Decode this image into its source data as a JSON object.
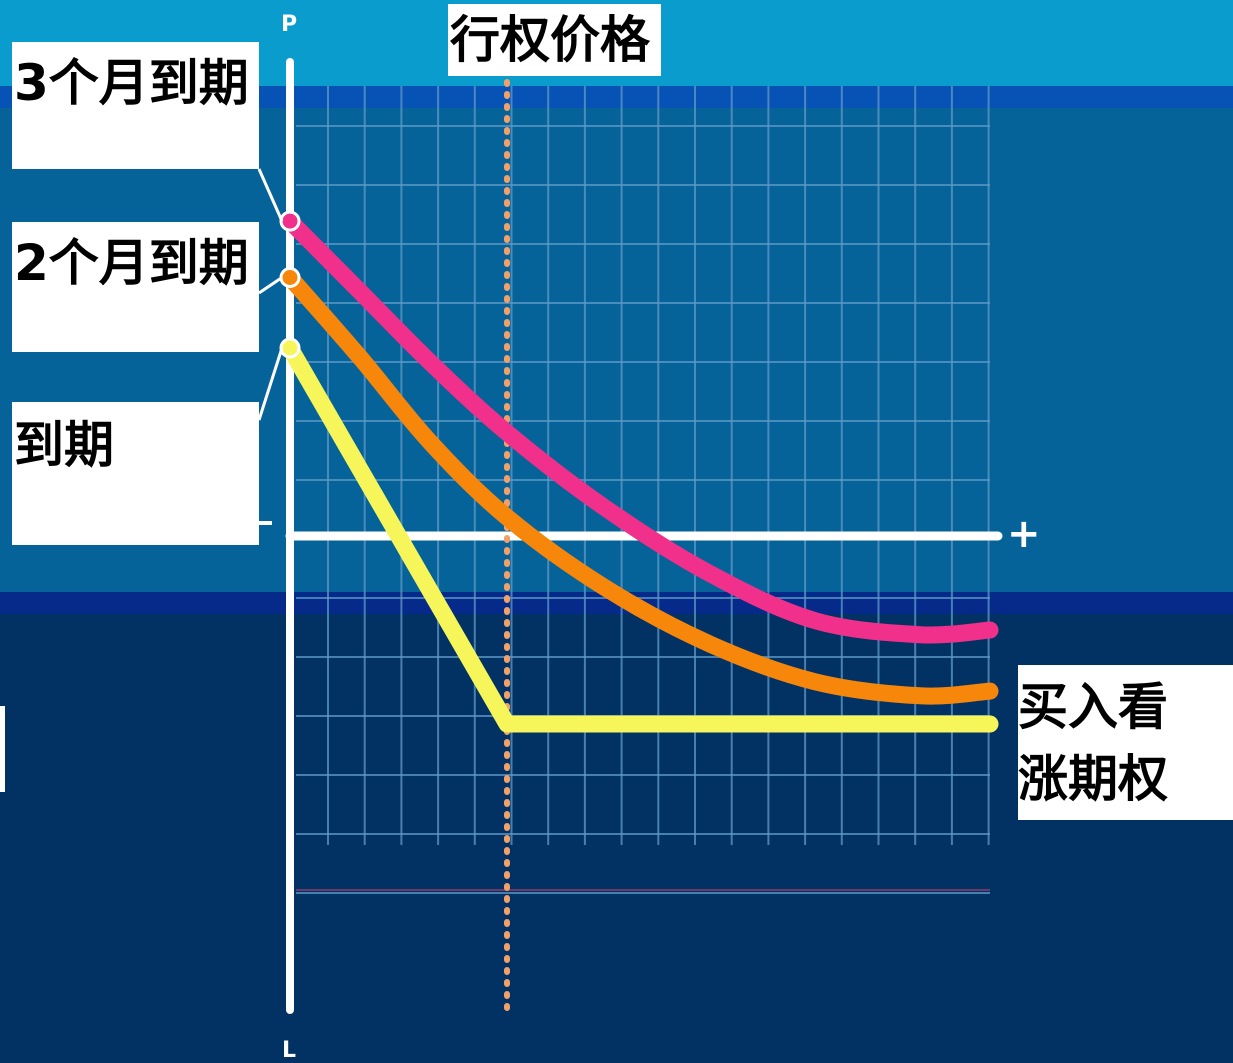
{
  "chart_data": {
    "type": "line",
    "title": "",
    "xlabel": "",
    "ylabel": "",
    "y_axis_top_label": "P",
    "y_axis_bottom_label": "L",
    "x_axis_right_label": "+",
    "x_axis_left_label": "-",
    "xlim": [
      0,
      100
    ],
    "ylim": [
      -100,
      100
    ],
    "grid": true,
    "legend": "left",
    "strike_label": "行权价格",
    "strike_x": 31,
    "option_label_line1": "买入看",
    "option_label_line2": "涨期权",
    "series": [
      {
        "name": "3个月到期",
        "color": "#f0308a",
        "x": [
          0,
          10,
          20,
          31,
          45,
          60,
          75,
          90,
          100
        ],
        "y": [
          67,
          52,
          37,
          22,
          6,
          -8,
          -18,
          -21,
          -20
        ]
      },
      {
        "name": "2个月到期",
        "color": "#f7870a",
        "x": [
          0,
          10,
          20,
          31,
          45,
          60,
          75,
          90,
          100
        ],
        "y": [
          55,
          38,
          20,
          4,
          -11,
          -23,
          -31,
          -34,
          -33
        ]
      },
      {
        "name": "到期",
        "color": "#f6f65a",
        "x": [
          0,
          31,
          100
        ],
        "y": [
          40,
          -40,
          -40
        ]
      }
    ]
  }
}
